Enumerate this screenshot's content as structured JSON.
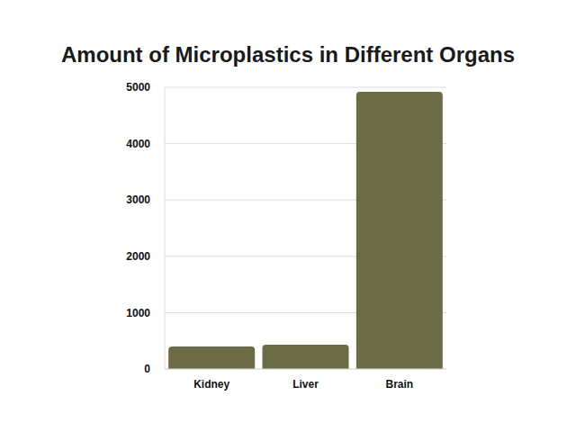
{
  "chart_data": {
    "type": "bar",
    "title": "Amount of Microplastics in Different Organs",
    "categories": [
      "Kidney",
      "Liver",
      "Brain"
    ],
    "values": [
      400,
      430,
      4920
    ],
    "color": "#6b6b45",
    "ylim": [
      0,
      5000
    ],
    "yticks": [
      0,
      1000,
      2000,
      3000,
      4000,
      5000
    ],
    "grid": true
  }
}
